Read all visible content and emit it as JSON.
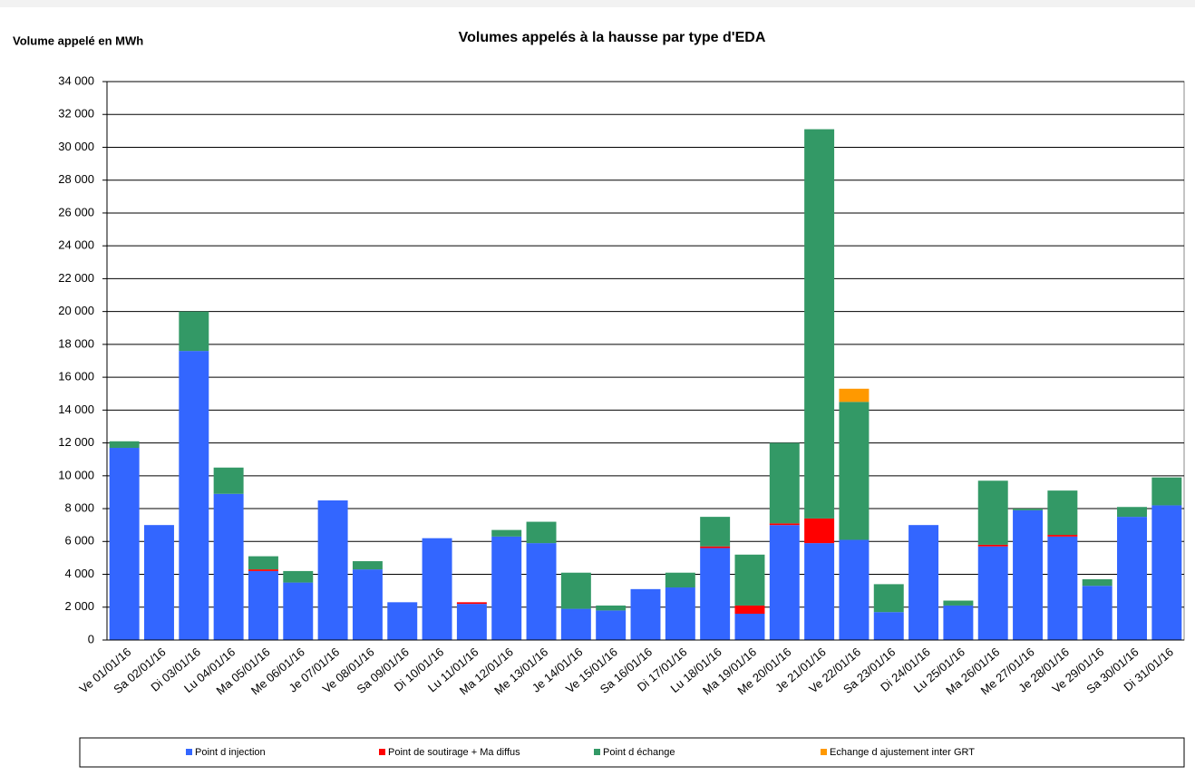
{
  "chart_data": {
    "type": "bar",
    "stacked": true,
    "title": "Volumes appelés à la hausse par type d'EDA",
    "y_label": "Volume appelé en MWh",
    "categories": [
      "Ve 01/01/16",
      "Sa 02/01/16",
      "Di 03/01/16",
      "Lu 04/01/16",
      "Ma 05/01/16",
      "Me 06/01/16",
      "Je 07/01/16",
      "Ve 08/01/16",
      "Sa 09/01/16",
      "Di 10/01/16",
      "Lu 11/01/16",
      "Ma 12/01/16",
      "Me 13/01/16",
      "Je 14/01/16",
      "Ve 15/01/16",
      "Sa 16/01/16",
      "Di 17/01/16",
      "Lu 18/01/16",
      "Ma 19/01/16",
      "Me 20/01/16",
      "Je 21/01/16",
      "Ve 22/01/16",
      "Sa 23/01/16",
      "Di 24/01/16",
      "Lu 25/01/16",
      "Ma 26/01/16",
      "Me 27/01/16",
      "Je 28/01/16",
      "Ve 29/01/16",
      "Sa 30/01/16",
      "Di 31/01/16"
    ],
    "series": [
      {
        "name": "Point d injection",
        "color": "#3366ff",
        "values": [
          11700,
          7000,
          17600,
          8900,
          4200,
          3500,
          8500,
          4300,
          2300,
          6200,
          2200,
          6300,
          5900,
          1900,
          1800,
          3100,
          3200,
          5600,
          1600,
          7000,
          5900,
          6100,
          1700,
          7000,
          2100,
          5700,
          7900,
          6300,
          3300,
          7500,
          8200
        ]
      },
      {
        "name": "Point de soutirage + Ma diffus",
        "color": "#ff0000",
        "values": [
          0,
          0,
          0,
          0,
          100,
          0,
          0,
          0,
          0,
          0,
          100,
          0,
          0,
          0,
          0,
          0,
          0,
          100,
          500,
          100,
          1500,
          0,
          0,
          0,
          0,
          100,
          0,
          100,
          0,
          0,
          0
        ]
      },
      {
        "name": "Point d échange",
        "color": "#339966",
        "values": [
          400,
          0,
          2400,
          1600,
          800,
          700,
          0,
          500,
          0,
          0,
          0,
          400,
          1300,
          2200,
          300,
          0,
          900,
          1800,
          3100,
          4900,
          23700,
          8400,
          1700,
          0,
          300,
          3900,
          100,
          2700,
          400,
          600,
          1700
        ]
      },
      {
        "name": "Echange d ajustement inter GRT",
        "color": "#ff9900",
        "values": [
          0,
          0,
          0,
          0,
          0,
          0,
          0,
          0,
          0,
          0,
          0,
          0,
          0,
          0,
          0,
          0,
          0,
          0,
          0,
          0,
          0,
          800,
          0,
          0,
          0,
          0,
          0,
          0,
          0,
          0,
          0
        ]
      }
    ],
    "ylim": [
      0,
      34000
    ],
    "yticks": [
      {
        "value": 0,
        "label": "0"
      },
      {
        "value": 2000,
        "label": "2 000"
      },
      {
        "value": 4000,
        "label": "4 000"
      },
      {
        "value": 6000,
        "label": "6 000"
      },
      {
        "value": 8000,
        "label": "8 000"
      },
      {
        "value": 10000,
        "label": "10 000"
      },
      {
        "value": 12000,
        "label": "12 000"
      },
      {
        "value": 14000,
        "label": "14 000"
      },
      {
        "value": 16000,
        "label": "16 000"
      },
      {
        "value": 18000,
        "label": "18 000"
      },
      {
        "value": 20000,
        "label": "20 000"
      },
      {
        "value": 22000,
        "label": "22 000"
      },
      {
        "value": 24000,
        "label": "24 000"
      },
      {
        "value": 26000,
        "label": "26 000"
      },
      {
        "value": 28000,
        "label": "28 000"
      },
      {
        "value": 30000,
        "label": "30 000"
      },
      {
        "value": 32000,
        "label": "32 000"
      },
      {
        "value": 34000,
        "label": "34 000"
      }
    ],
    "grid": true,
    "legend": "bottom"
  }
}
